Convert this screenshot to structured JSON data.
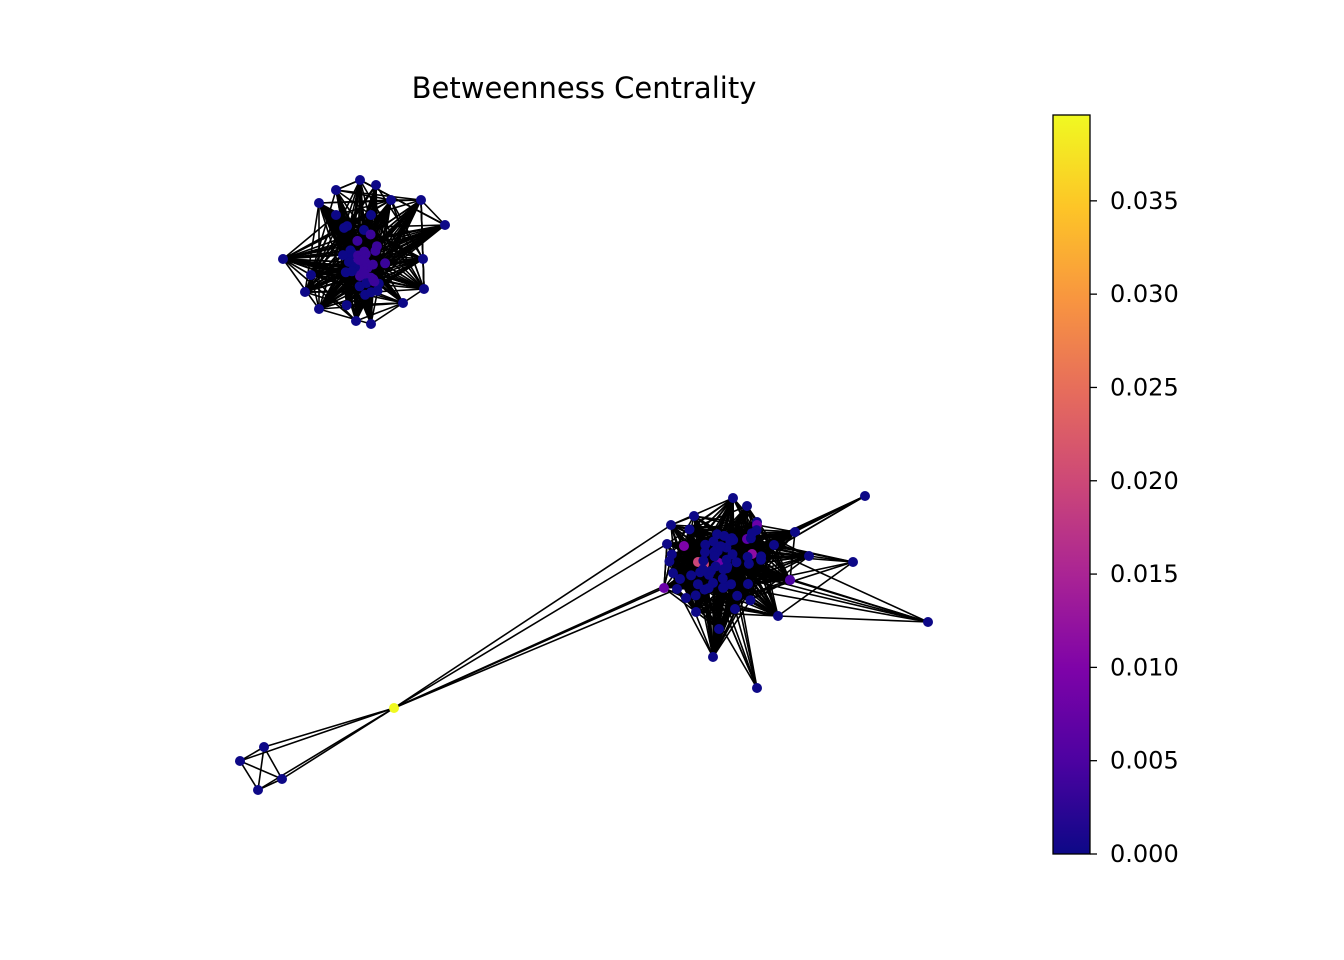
{
  "chart_data": {
    "type": "network",
    "title": "Betweenness Centrality",
    "colormap": "plasma",
    "colorbar": {
      "range": [
        0,
        0.0396
      ],
      "ticks": [
        {
          "value": 0.0,
          "label": "0.000"
        },
        {
          "value": 0.005,
          "label": "0.005"
        },
        {
          "value": 0.01,
          "label": "0.010"
        },
        {
          "value": 0.015,
          "label": "0.015"
        },
        {
          "value": 0.02,
          "label": "0.020"
        },
        {
          "value": 0.025,
          "label": "0.025"
        },
        {
          "value": 0.03,
          "label": "0.030"
        },
        {
          "value": 0.035,
          "label": "0.035"
        }
      ]
    },
    "colors": {
      "edge": "#000000",
      "min_color": "#0d0887",
      "max_color": "#f0f921",
      "bridge_node": "#f0f921",
      "hub_nodes": "#cc4778"
    },
    "components": [
      {
        "name": "upper-left-cluster",
        "node_count": 60,
        "max_centrality": 0.002
      },
      {
        "name": "right-cluster",
        "node_count": 78,
        "max_centrality": 0.019
      },
      {
        "name": "lower-left-cluster",
        "node_count": 4,
        "max_centrality": 0.0
      },
      {
        "name": "bridge-node",
        "node_count": 1,
        "max_centrality": 0.0396
      }
    ],
    "grid": false,
    "legend": "none"
  }
}
